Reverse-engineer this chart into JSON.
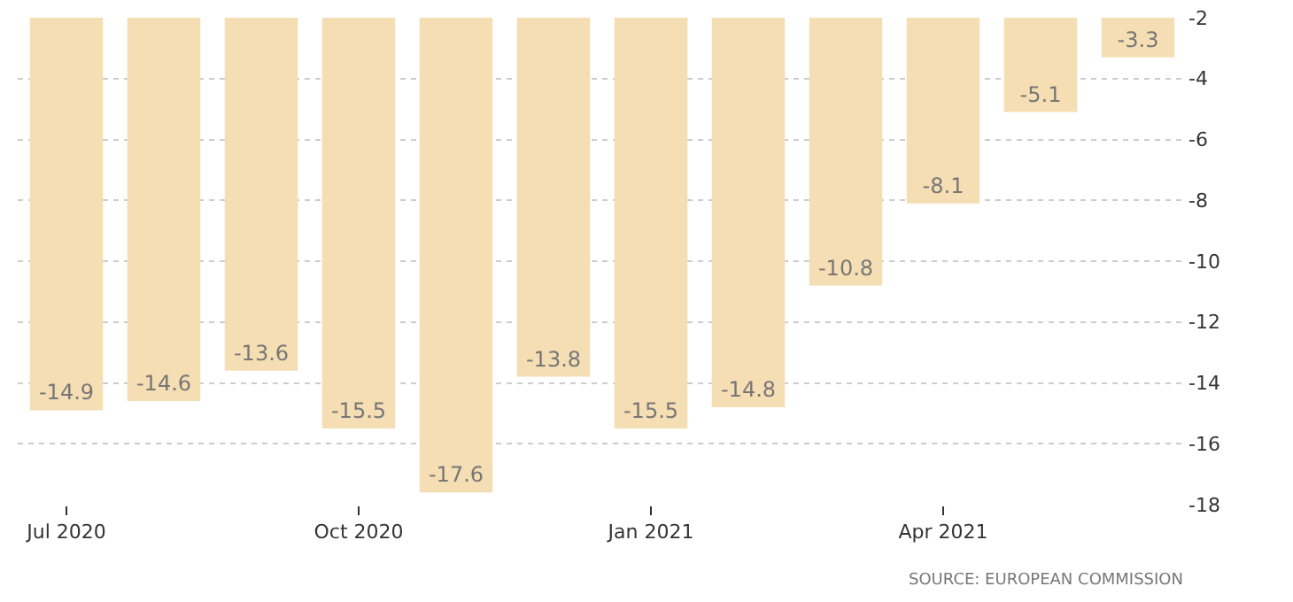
{
  "chart_data": {
    "type": "bar",
    "categories": [
      "Jul 2020",
      null,
      null,
      "Oct 2020",
      null,
      null,
      "Jan 2021",
      null,
      null,
      "Apr 2021",
      null,
      null
    ],
    "values": [
      -14.9,
      -14.6,
      -13.6,
      -15.5,
      -17.6,
      -13.8,
      -15.5,
      -14.8,
      -10.8,
      -8.1,
      -5.1,
      -3.3
    ],
    "color": "#f5deb3",
    "ylim": [
      -18,
      -2
    ],
    "yticks": [
      -18,
      -16,
      -14,
      -12,
      -10,
      -8,
      -6,
      -4,
      -2
    ],
    "grid": "y",
    "data_labels": true,
    "annotations": [
      "SOURCE: EUROPEAN COMMISSION"
    ]
  }
}
